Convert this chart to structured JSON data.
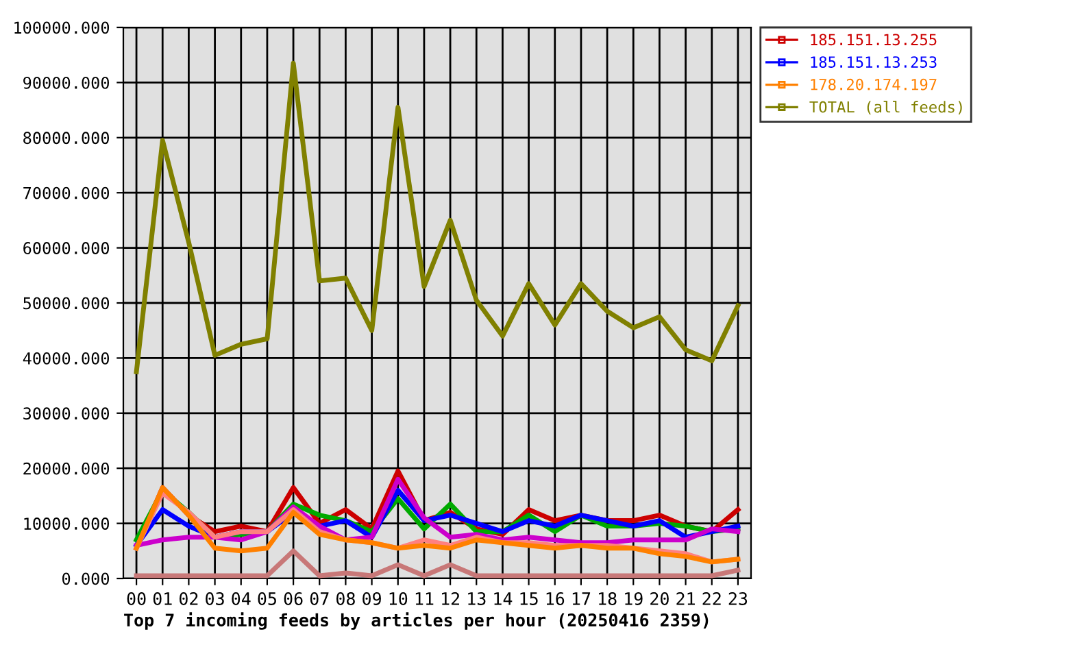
{
  "chart_data": {
    "type": "line",
    "xlabel": "Top 7 incoming feeds by articles per hour (20250416 2359)",
    "categories": [
      "00",
      "01",
      "02",
      "03",
      "04",
      "05",
      "06",
      "07",
      "08",
      "09",
      "10",
      "11",
      "12",
      "13",
      "14",
      "15",
      "16",
      "17",
      "18",
      "19",
      "20",
      "21",
      "22",
      "23"
    ],
    "ylim": [
      0,
      100000
    ],
    "yticks": [
      {
        "value": 0,
        "label": "0.000"
      },
      {
        "value": 10000,
        "label": "10000.000"
      },
      {
        "value": 20000,
        "label": "20000.000"
      },
      {
        "value": 30000,
        "label": "30000.000"
      },
      {
        "value": 40000,
        "label": "40000.000"
      },
      {
        "value": 50000,
        "label": "50000.000"
      },
      {
        "value": 60000,
        "label": "60000.000"
      },
      {
        "value": 70000,
        "label": "70000.000"
      },
      {
        "value": 80000,
        "label": "80000.000"
      },
      {
        "value": 90000,
        "label": "90000.000"
      },
      {
        "value": 100000,
        "label": "100000.000"
      }
    ],
    "grid": true,
    "legend": "right",
    "line_style": "solid",
    "series": [
      {
        "name": "185.151.13.255",
        "color": "#cc0000",
        "values": [
          5500,
          16500,
          11500,
          8500,
          9500,
          8500,
          16500,
          10000,
          12500,
          9000,
          19500,
          10500,
          12000,
          9000,
          8000,
          12500,
          10500,
          11500,
          10500,
          10500,
          11500,
          9500,
          8500,
          12500
        ]
      },
      {
        "color": "#00aa00",
        "values": [
          7000,
          16000,
          12000,
          7500,
          8000,
          8500,
          13500,
          11500,
          10500,
          8500,
          14500,
          9000,
          13500,
          8500,
          8500,
          11500,
          8500,
          11500,
          9500,
          9500,
          10000,
          9500,
          8500,
          9000
        ]
      },
      {
        "name": "185.151.13.253",
        "color": "#0000ff",
        "values": [
          6000,
          12500,
          9500,
          7500,
          8500,
          8500,
          12000,
          9500,
          10500,
          7500,
          16000,
          10500,
          11500,
          10000,
          8500,
          10500,
          9500,
          11500,
          10500,
          9500,
          10500,
          7500,
          8500,
          9500
        ]
      },
      {
        "color": "#cc00cc",
        "values": [
          6000,
          7000,
          7500,
          7500,
          7000,
          8500,
          13000,
          9500,
          7000,
          7500,
          18000,
          11000,
          7500,
          8000,
          7000,
          7500,
          7000,
          6500,
          6500,
          7000,
          7000,
          7000,
          9000,
          8500
        ]
      },
      {
        "color": "#ff8080",
        "values": [
          5500,
          15500,
          12000,
          7500,
          8500,
          8500,
          12500,
          8500,
          7000,
          6500,
          5500,
          7000,
          6000,
          7500,
          6500,
          6500,
          6000,
          6000,
          6000,
          5500,
          5000,
          4500,
          3000,
          3500
        ]
      },
      {
        "name": "178.20.174.197",
        "color": "#ff8000",
        "values": [
          5500,
          16500,
          11500,
          5500,
          5000,
          5500,
          12000,
          8000,
          7000,
          6500,
          5500,
          6000,
          5500,
          7000,
          6500,
          6000,
          5500,
          6000,
          5500,
          5500,
          4500,
          4000,
          3000,
          3500
        ]
      },
      {
        "color": "#c87878",
        "values": [
          500,
          500,
          500,
          500,
          500,
          500,
          5000,
          500,
          1000,
          500,
          2500,
          500,
          2500,
          500,
          500,
          500,
          500,
          500,
          500,
          500,
          500,
          500,
          500,
          1500
        ]
      },
      {
        "name": "TOTAL (all feeds)",
        "color": "#808000",
        "values": [
          37500,
          79500,
          61000,
          40500,
          42500,
          43500,
          93500,
          54000,
          54500,
          45000,
          85500,
          53000,
          65000,
          50500,
          44000,
          53500,
          46000,
          53500,
          48500,
          45500,
          47500,
          41500,
          39500,
          49500
        ]
      }
    ]
  }
}
